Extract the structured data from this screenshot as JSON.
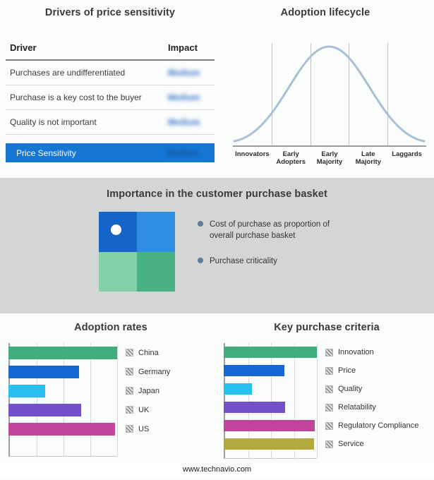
{
  "drivers": {
    "title": "Drivers of price sensitivity",
    "columns": [
      "Driver",
      "Impact"
    ],
    "rows": [
      {
        "driver": "Purchases are undifferentiated",
        "impact": "Medium"
      },
      {
        "driver": "Purchase is a key cost to the buyer",
        "impact": "Medium"
      },
      {
        "driver": "Quality is not important",
        "impact": "Medium"
      }
    ],
    "highlight": {
      "driver": "Price Sensitivity",
      "impact": "Medium"
    },
    "highlight_color": "#1576d4",
    "impact_values_blurred": true
  },
  "lifecycle": {
    "title": "Adoption lifecycle",
    "stages": [
      "Innovators",
      "Early Adopters",
      "Early Majority",
      "Late Majority",
      "Laggards"
    ],
    "curve_color": "#a8bfd8"
  },
  "basket": {
    "title": "Importance in the customer purchase basket",
    "legend": [
      "Cost of purchase as proportion of overall purchase basket",
      "Purchase criticality"
    ],
    "quadrants": {
      "top_left": "#1565c8",
      "top_right": "#2f8ee0",
      "bottom_left": "#84cfa6",
      "bottom_right": "#49b184"
    }
  },
  "footer": {
    "url": "www.technavio.com"
  },
  "chart_data": [
    {
      "type": "bar",
      "orientation": "horizontal",
      "title": "Adoption rates",
      "categories": [
        "China",
        "Germany",
        "Japan",
        "UK",
        "US"
      ],
      "values": [
        100,
        65,
        34,
        67,
        98
      ],
      "xlim": [
        0,
        100
      ],
      "axis_tick_labels": "none shown (relative scale)",
      "grid": "vertical gridlines at quarter intervals",
      "colors": [
        "#3fae7c",
        "#1565d2",
        "#29c0f0",
        "#7450c8",
        "#c0449a"
      ]
    },
    {
      "type": "bar",
      "orientation": "horizontal",
      "title": "Key purchase criteria",
      "categories": [
        "Innovation",
        "Price",
        "Quality",
        "Relatability",
        "Regulatory Compliance",
        "Service"
      ],
      "values": [
        100,
        65,
        30,
        66,
        98,
        97
      ],
      "xlim": [
        0,
        100
      ],
      "axis_tick_labels": "none shown (relative scale)",
      "grid": "vertical gridlines at quarter intervals",
      "colors": [
        "#3fae7c",
        "#1565d2",
        "#29c0f0",
        "#7450c8",
        "#c0449a",
        "#b3aa3e"
      ]
    },
    {
      "type": "line",
      "title": "Adoption lifecycle",
      "categories": [
        "Innovators",
        "Early Adopters",
        "Early Majority",
        "Late Majority",
        "Laggards"
      ],
      "shape": "bell curve peaking over Early Majority",
      "relative_height_profile": [
        0.05,
        0.55,
        1.0,
        0.55,
        0.05
      ]
    }
  ]
}
